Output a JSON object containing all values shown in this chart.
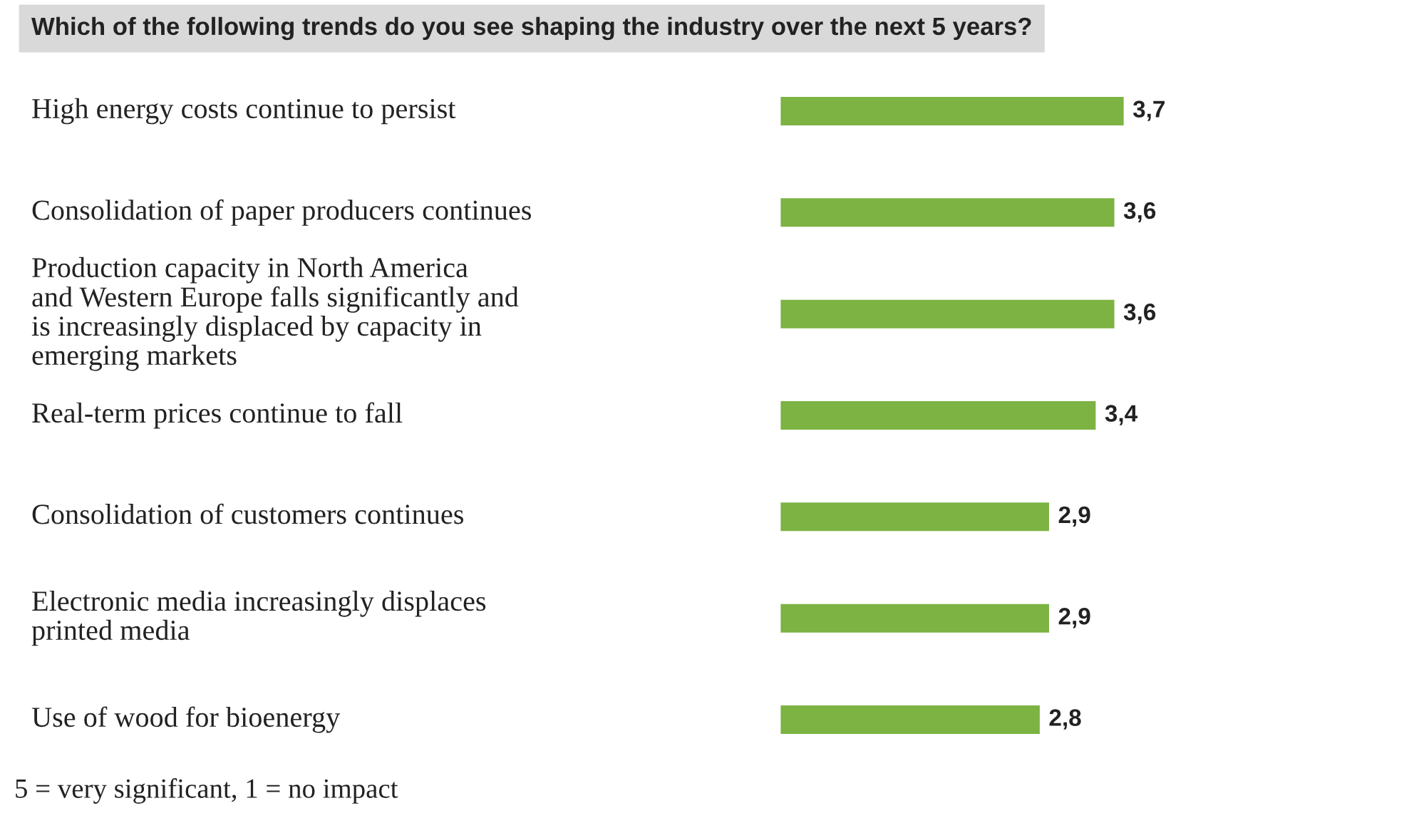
{
  "chart_data": {
    "type": "bar",
    "orientation": "horizontal",
    "title": "Which of the following trends do you see shaping the industry over the next 5 years?",
    "categories": [
      "High energy costs continue to persist",
      "Consolidation of paper producers continues",
      "Production capacity in North America\nand Western Europe falls significantly and\nis increasingly displaced by capacity in\nemerging markets",
      "Real-term prices continue to fall",
      "Consolidation of customers continues",
      "Electronic media increasingly displaces\nprinted media",
      "Use of wood for bioenergy"
    ],
    "values": [
      3.7,
      3.6,
      3.6,
      3.4,
      2.9,
      2.9,
      2.8
    ],
    "value_labels": [
      "3,7",
      "3,6",
      "3,6",
      "3,4",
      "2,9",
      "2,9",
      "2,8"
    ],
    "color": "#7cb342",
    "annotations": [
      "5 = very significant, 1 = no impact"
    ]
  }
}
